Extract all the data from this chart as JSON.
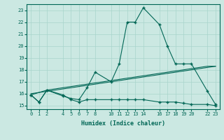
{
  "xlabel": "Humidex (Indice chaleur)",
  "ylabel": "",
  "background_color": "#cbe8e2",
  "grid_color": "#a8d5cc",
  "line_color": "#006655",
  "xlim": [
    -0.5,
    23.5
  ],
  "ylim": [
    14.7,
    23.5
  ],
  "xticks": [
    0,
    1,
    2,
    4,
    5,
    6,
    7,
    8,
    10,
    11,
    12,
    13,
    14,
    16,
    17,
    18,
    19,
    20,
    22,
    23
  ],
  "yticks": [
    15,
    16,
    17,
    18,
    19,
    20,
    21,
    22,
    23
  ],
  "series1_x": [
    0,
    1,
    2,
    4,
    5,
    6,
    7,
    8,
    10,
    11,
    12,
    13,
    14,
    16,
    17,
    18,
    19,
    20,
    22,
    23
  ],
  "series1_y": [
    15.9,
    15.3,
    16.3,
    15.9,
    15.5,
    15.3,
    15.5,
    15.5,
    15.5,
    15.5,
    15.5,
    15.5,
    15.5,
    15.3,
    15.3,
    15.3,
    15.2,
    15.1,
    15.1,
    15.0
  ],
  "series2_x": [
    0,
    2,
    22,
    23
  ],
  "series2_y": [
    15.9,
    16.3,
    18.3,
    18.3
  ],
  "series3_x": [
    0,
    1,
    2,
    4,
    5,
    6,
    7,
    8,
    10,
    11,
    12,
    13,
    14,
    16,
    17,
    18,
    19,
    20,
    22,
    23
  ],
  "series3_y": [
    15.9,
    15.3,
    16.3,
    15.8,
    15.6,
    15.5,
    16.5,
    17.8,
    17.0,
    18.5,
    22.0,
    22.0,
    23.2,
    21.8,
    20.0,
    18.5,
    18.5,
    18.5,
    16.2,
    15.1
  ],
  "series4_x": [
    0,
    23
  ],
  "series4_y": [
    16.0,
    18.3
  ]
}
